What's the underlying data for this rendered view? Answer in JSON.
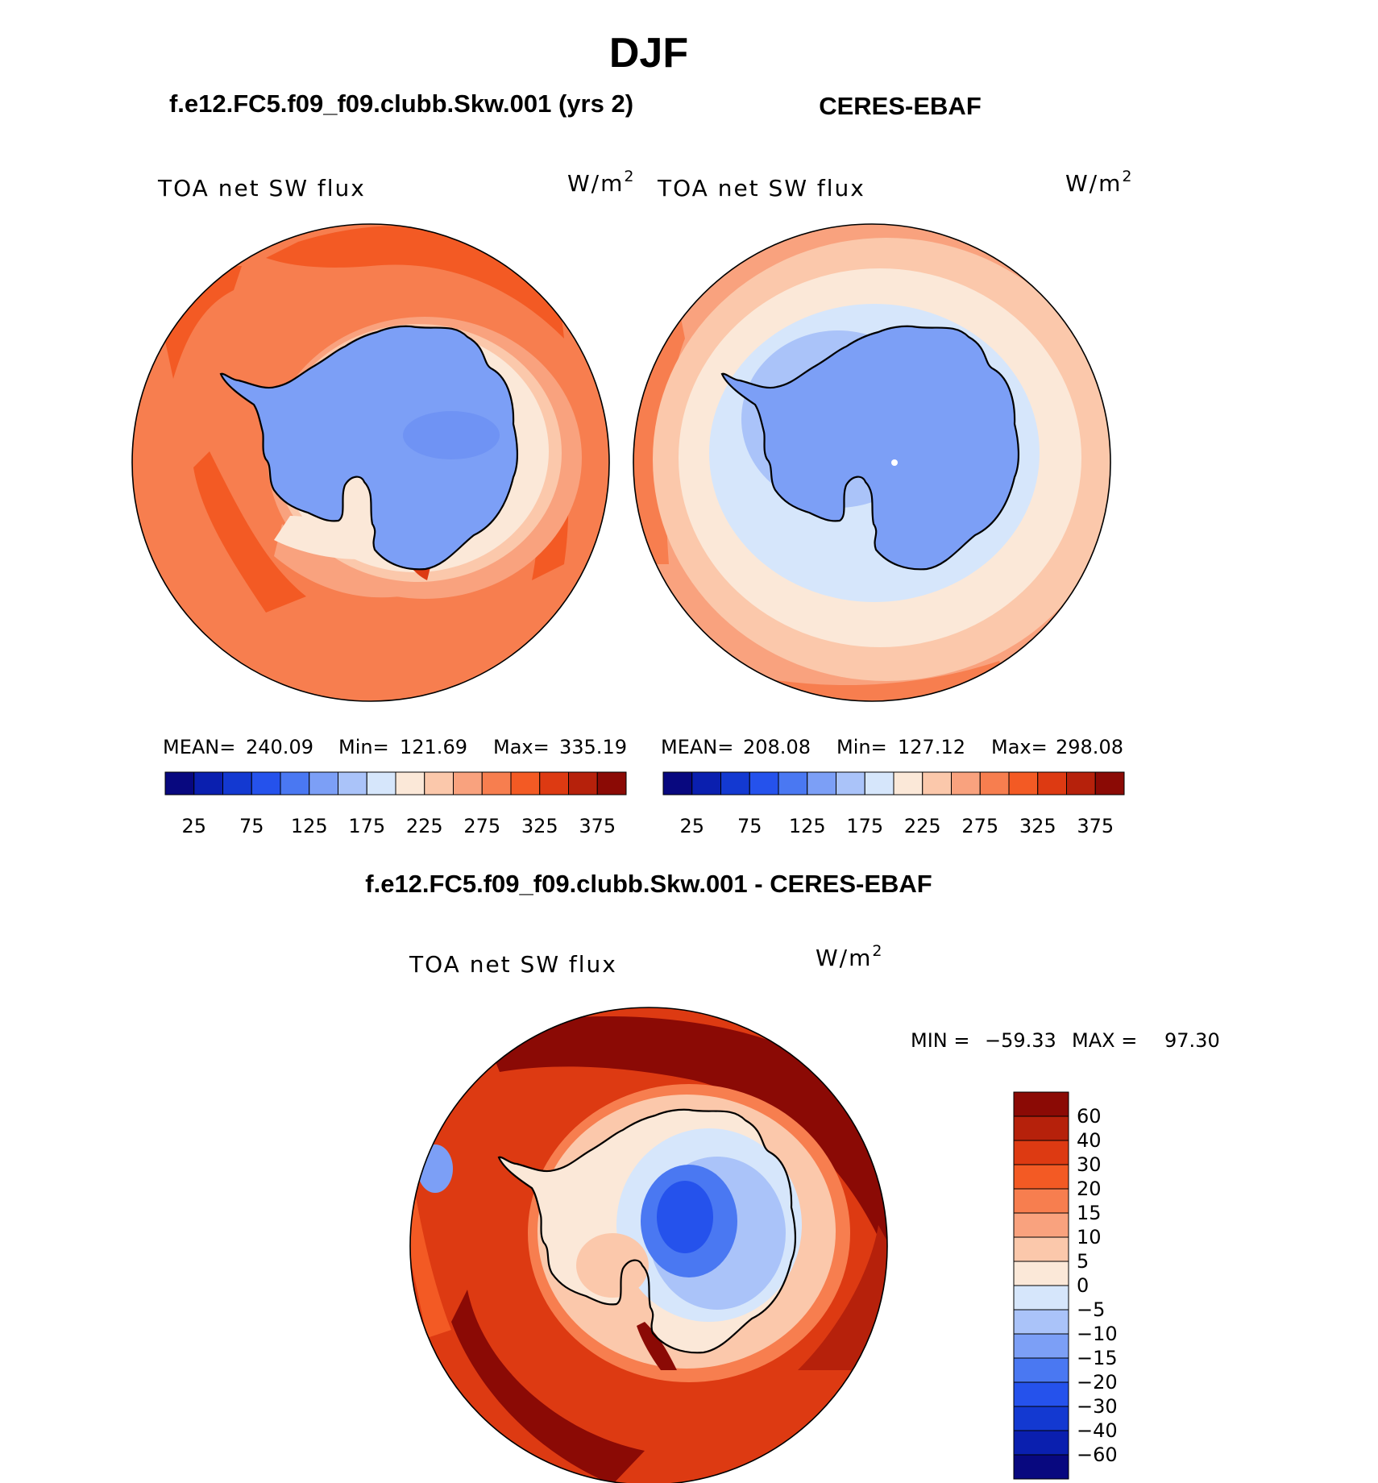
{
  "season_title": "DJF",
  "chart_data": [
    {
      "type": "heatmap",
      "projection": "south-polar-stereographic",
      "title": "f.e12.FC5.f09_f09.clubb.Skw.001 (yrs 2)",
      "variable": "TOA net SW flux",
      "units_base": "W/m",
      "units_exp": "2",
      "stats": {
        "mean_label": "MEAN=",
        "mean": "240.09",
        "min_label": "Min=",
        "min": "121.69",
        "max_label": "Max=",
        "max": "335.19"
      },
      "colorbar_labels": [
        "25",
        "75",
        "125",
        "175",
        "225",
        "275",
        "325",
        "375"
      ]
    },
    {
      "type": "heatmap",
      "projection": "south-polar-stereographic",
      "title": "CERES-EBAF",
      "variable": "TOA net SW flux",
      "units_base": "W/m",
      "units_exp": "2",
      "stats": {
        "mean_label": "MEAN=",
        "mean": "208.08",
        "min_label": "Min=",
        "min": "127.12",
        "max_label": "Max=",
        "max": "298.08"
      },
      "colorbar_labels": [
        "25",
        "75",
        "125",
        "175",
        "225",
        "275",
        "325",
        "375"
      ]
    },
    {
      "type": "heatmap",
      "projection": "south-polar-stereographic",
      "title": "f.e12.FC5.f09_f09.clubb.Skw.001 - CERES-EBAF",
      "variable": "TOA net SW flux",
      "units_base": "W/m",
      "units_exp": "2",
      "stats": {
        "min_label": "MIN =",
        "min": "−59.33",
        "max_label": "MAX =",
        "max": "97.30"
      },
      "colorbar_labels": [
        "60",
        "40",
        "30",
        "20",
        "15",
        "10",
        "5",
        "0",
        "−5",
        "−10",
        "−15",
        "−20",
        "−30",
        "−40",
        "−60"
      ]
    }
  ],
  "colors": {
    "abs_scale": [
      "#08087f",
      "#0a1faf",
      "#1339d1",
      "#2552ec",
      "#4a78f2",
      "#7c9ff6",
      "#aac3f9",
      "#d6e6fb",
      "#fbe8d8",
      "#fbc8ab",
      "#f9a27e",
      "#f77e4f",
      "#f35a24",
      "#dd3a12",
      "#b6210b",
      "#8b0a05"
    ],
    "diff_scale": [
      "#8b0a05",
      "#b6210b",
      "#dd3a12",
      "#f35a24",
      "#f77e4f",
      "#f9a27e",
      "#fbc8ab",
      "#fbe8d8",
      "#d6e6fb",
      "#aac3f9",
      "#7c9ff6",
      "#4a78f2",
      "#2552ec",
      "#1339d1",
      "#0a1faf",
      "#08087f"
    ]
  }
}
